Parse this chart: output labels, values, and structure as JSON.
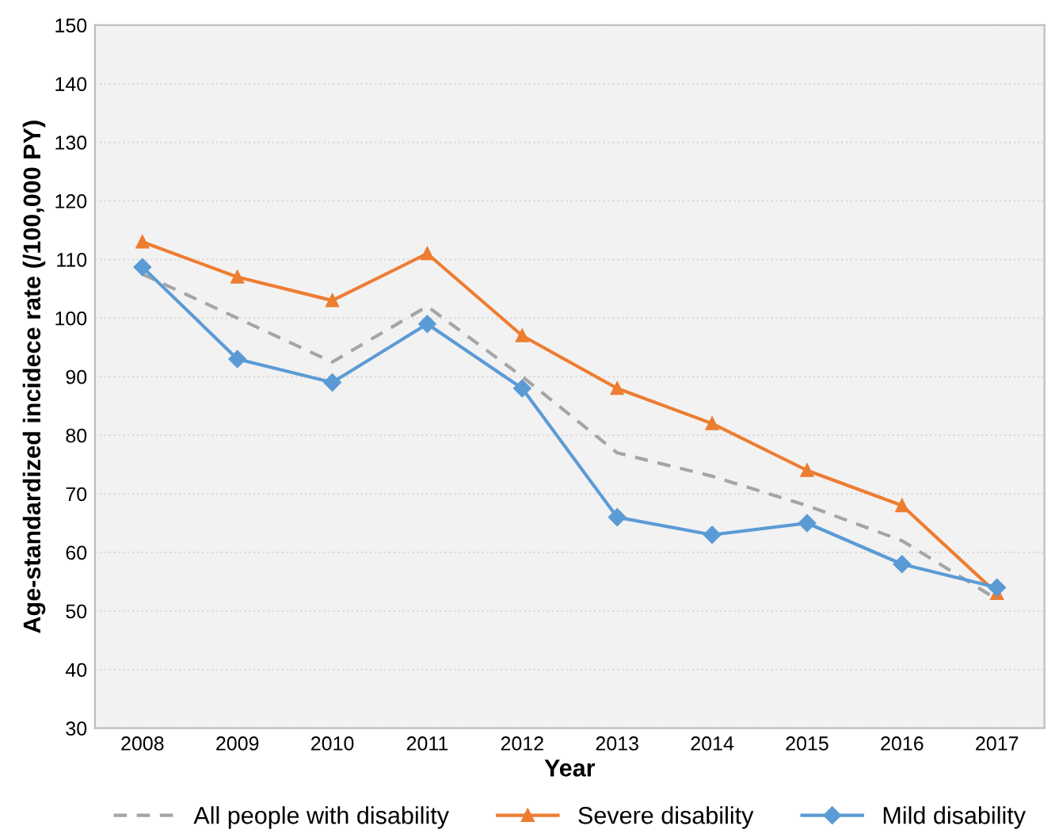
{
  "chart_data": {
    "type": "line",
    "xlabel": "Year",
    "ylabel": "Age-standardized incidece rate (/100,000 PY)",
    "categories": [
      "2008",
      "2009",
      "2010",
      "2011",
      "2012",
      "2013",
      "2014",
      "2015",
      "2016",
      "2017"
    ],
    "series": [
      {
        "name": "All people with disability",
        "color": "#a5a5a5",
        "line_style": "dashed",
        "marker": "none",
        "values": [
          107.5,
          100,
          92.5,
          102,
          90,
          77,
          73,
          68,
          62,
          52
        ]
      },
      {
        "name": "Severe disability",
        "color": "#ed7d31",
        "line_style": "solid",
        "marker": "triangle",
        "values": [
          113,
          107,
          103,
          111,
          97,
          88,
          82,
          74,
          68,
          53
        ]
      },
      {
        "name": "Mild disability",
        "color": "#5b9bd5",
        "line_style": "solid",
        "marker": "diamond",
        "values": [
          108.7,
          93,
          89,
          99,
          88,
          66,
          63,
          65,
          58,
          54
        ]
      }
    ],
    "ylim": [
      30,
      150
    ],
    "yticks": [
      30,
      40,
      50,
      60,
      70,
      80,
      90,
      100,
      110,
      120,
      130,
      140,
      150
    ],
    "grid": "y",
    "legend": "bottom"
  }
}
